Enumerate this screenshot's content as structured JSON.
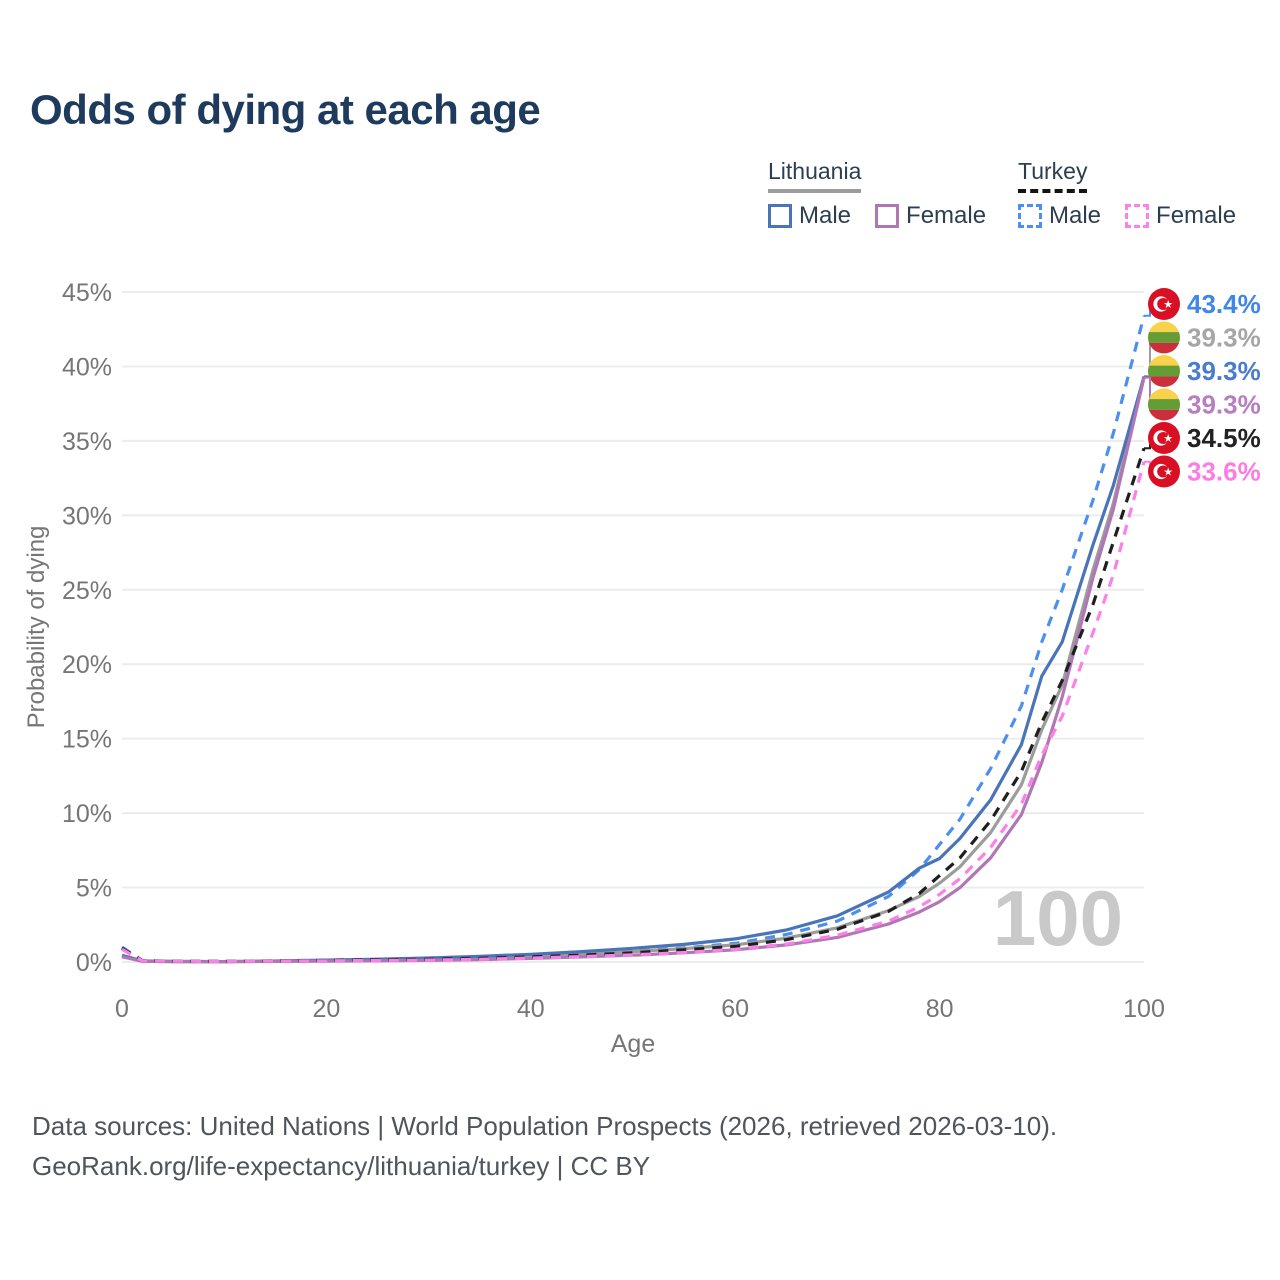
{
  "title": "Odds of dying at each age",
  "legend": {
    "lithuania": {
      "name": "Lithuania",
      "male_label": "Male",
      "female_label": "Female",
      "male_color": "#4a74b8",
      "female_color": "#b077b4",
      "underline_color": "#9c9c9c"
    },
    "turkey": {
      "name": "Turkey",
      "male_label": "Male",
      "female_label": "Female",
      "male_color": "#4b90ee",
      "female_color": "#fb80e8",
      "underline_color": "#141414"
    }
  },
  "chart_data": {
    "type": "line",
    "title": "Odds of dying at each age",
    "xlabel": "Age",
    "ylabel": "Probability of dying",
    "xlim": [
      0,
      100
    ],
    "ylim": [
      0,
      45
    ],
    "grid": "horizontal",
    "x_ticks": [
      0,
      20,
      40,
      60,
      80,
      100
    ],
    "x_tick_labels": [
      "0",
      "20",
      "40",
      "60",
      "80",
      "100"
    ],
    "y_ticks": [
      0,
      5,
      10,
      15,
      20,
      25,
      30,
      35,
      40,
      45
    ],
    "y_tick_labels": [
      "0%",
      "5%",
      "10%",
      "15%",
      "20%",
      "25%",
      "30%",
      "35%",
      "40%",
      "45%"
    ],
    "watermark": "100",
    "x": [
      0,
      2,
      5,
      10,
      15,
      20,
      25,
      30,
      35,
      40,
      45,
      50,
      55,
      60,
      65,
      70,
      75,
      78,
      80,
      82,
      85,
      88,
      90,
      92,
      95,
      97,
      100
    ],
    "series": [
      {
        "name": "Turkey Male",
        "country": "turkey",
        "flag": "turkey",
        "dashed": true,
        "color": "#4b90ee",
        "end_label": "43.4%",
        "end_label_color": "#3f86e8",
        "values": [
          1.0,
          0.1,
          0.06,
          0.05,
          0.08,
          0.12,
          0.16,
          0.2,
          0.28,
          0.38,
          0.52,
          0.72,
          0.95,
          1.25,
          1.85,
          2.75,
          4.4,
          6.2,
          7.9,
          9.6,
          13.0,
          17.2,
          21.5,
          25.0,
          31.0,
          35.5,
          43.4
        ]
      },
      {
        "name": "Lithuania",
        "country": "lithuania",
        "flag": "lithuania",
        "dashed": false,
        "color": "#9c9c9c",
        "end_label": "39.3%",
        "end_label_color": "#a6a6a6",
        "values": [
          0.4,
          0.06,
          0.03,
          0.03,
          0.05,
          0.09,
          0.13,
          0.18,
          0.26,
          0.37,
          0.52,
          0.7,
          0.9,
          1.15,
          1.6,
          2.3,
          3.45,
          4.4,
          5.3,
          6.4,
          8.7,
          11.9,
          15.6,
          18.6,
          26.3,
          30.8,
          39.35
        ]
      },
      {
        "name": "Lithuania Male",
        "country": "lithuania",
        "flag": "lithuania",
        "dashed": false,
        "color": "#4a74b8",
        "end_label": "39.3%",
        "end_label_color": "#4a7cce",
        "values": [
          0.45,
          0.07,
          0.04,
          0.03,
          0.07,
          0.13,
          0.19,
          0.27,
          0.38,
          0.52,
          0.7,
          0.92,
          1.18,
          1.55,
          2.15,
          3.1,
          4.7,
          6.3,
          6.95,
          8.3,
          10.9,
          14.6,
          19.2,
          21.5,
          28.0,
          32.0,
          39.3
        ]
      },
      {
        "name": "Lithuania Female",
        "country": "lithuania",
        "flag": "lithuania",
        "dashed": false,
        "color": "#b077b4",
        "end_label": "39.3%",
        "end_label_color": "#b77ec0",
        "values": [
          0.35,
          0.05,
          0.03,
          0.02,
          0.04,
          0.06,
          0.08,
          0.11,
          0.16,
          0.24,
          0.34,
          0.46,
          0.62,
          0.82,
          1.15,
          1.65,
          2.55,
          3.35,
          4.05,
          5.0,
          7.0,
          9.9,
          13.4,
          17.8,
          25.8,
          30.4,
          39.25
        ]
      },
      {
        "name": "Turkey",
        "country": "turkey",
        "flag": "turkey",
        "dashed": true,
        "color": "#1f1f1f",
        "end_label": "34.5%",
        "end_label_color": "#222222",
        "values": [
          0.92,
          0.09,
          0.05,
          0.04,
          0.07,
          0.1,
          0.14,
          0.18,
          0.25,
          0.34,
          0.46,
          0.62,
          0.82,
          1.05,
          1.5,
          2.2,
          3.4,
          4.6,
          5.8,
          7.0,
          9.5,
          12.8,
          16.1,
          18.9,
          24.0,
          28.2,
          34.5
        ]
      },
      {
        "name": "Turkey Female",
        "country": "turkey",
        "flag": "turkey",
        "dashed": true,
        "color": "#fb80e8",
        "end_label": "33.6%",
        "end_label_color": "#fb7de4",
        "values": [
          0.85,
          0.08,
          0.05,
          0.04,
          0.06,
          0.08,
          0.1,
          0.13,
          0.18,
          0.26,
          0.36,
          0.48,
          0.64,
          0.85,
          1.2,
          1.8,
          2.75,
          3.7,
          4.55,
          5.6,
          7.7,
          10.6,
          13.9,
          16.5,
          22.1,
          26.0,
          33.6
        ]
      }
    ],
    "legend_position": "top-right"
  },
  "colors": {
    "title": "#1e3a5c",
    "axis_text": "#767676",
    "gridline": "#ececec",
    "watermark": "#c9c9c9",
    "flag_turkey_red": "#d91023",
    "flag_lithuania_yellow": "#f9d24b",
    "flag_lithuania_green": "#649c35",
    "flag_lithuania_red": "#c9303c"
  },
  "footer": {
    "line1": "Data sources: United Nations | World Population Prospects (2026, retrieved 2026-03-10).",
    "line2": "GeoRank.org/life-expectancy/lithuania/turkey | CC BY"
  }
}
